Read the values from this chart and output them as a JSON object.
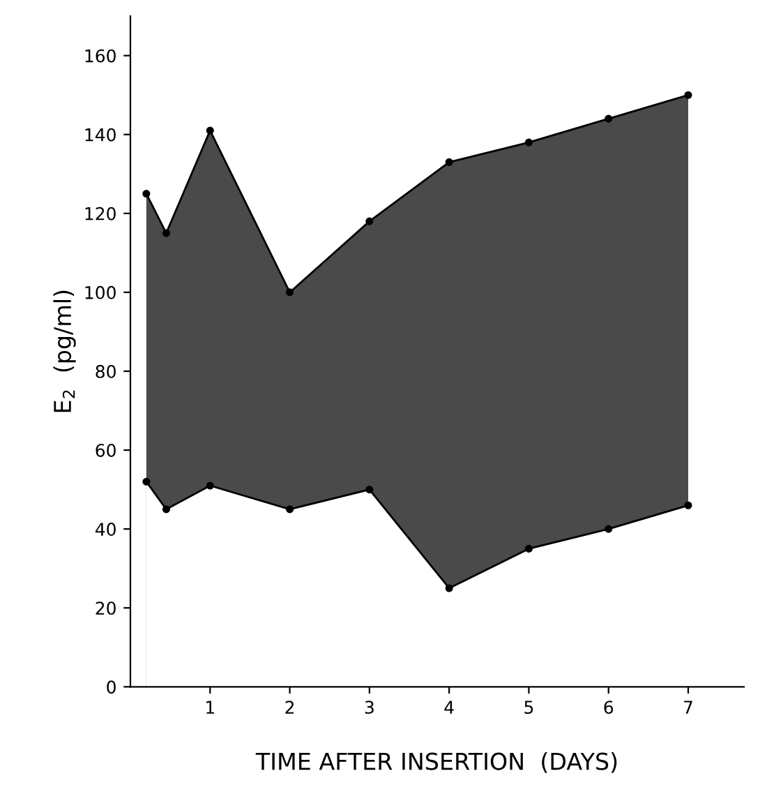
{
  "chart_data": {
    "type": "area",
    "xlabel": "TIME AFTER INSERTION  (DAYS)",
    "ylabel": "E$_{2}$  (pg/ml)",
    "xlim": [
      0,
      7.7
    ],
    "ylim": [
      0,
      170
    ],
    "xticks": [
      1,
      2,
      3,
      4,
      5,
      6,
      7
    ],
    "yticks": [
      0,
      20,
      40,
      60,
      80,
      100,
      120,
      140,
      160
    ],
    "marker": "circle",
    "grid": false,
    "legend": false,
    "x": [
      0.2,
      0.45,
      1,
      2,
      3,
      4,
      5,
      6,
      7
    ],
    "series": [
      {
        "color": "#4a4a4a",
        "values": [
          125,
          115,
          141,
          100,
          118,
          133,
          138,
          144,
          150
        ]
      },
      {
        "color": "#ffffff",
        "values": [
          52,
          45,
          51,
          45,
          50,
          25,
          35,
          40,
          46
        ]
      }
    ]
  }
}
